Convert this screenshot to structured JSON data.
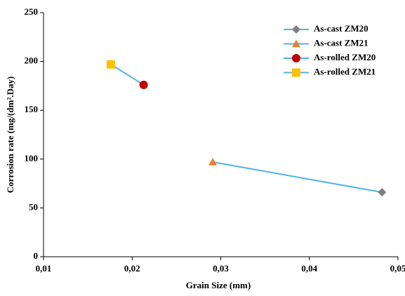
{
  "chart_data": {
    "type": "scatter",
    "xlabel": "Grain Size (mm)",
    "ylabel": "Corrosion rate (mg/(dm².Day)",
    "xlim": [
      0.01,
      0.05
    ],
    "xticks": [
      {
        "value": 0.01,
        "label": "0,01"
      },
      {
        "value": 0.02,
        "label": "0,02"
      },
      {
        "value": 0.03,
        "label": "0,03"
      },
      {
        "value": 0.04,
        "label": "0,04"
      },
      {
        "value": 0.05,
        "label": "0,05"
      }
    ],
    "ylim": [
      0,
      250
    ],
    "yticks": [
      0,
      50,
      100,
      150,
      200,
      250
    ],
    "grid": false,
    "legend": "top-right",
    "line_color": "#4fb3e8",
    "series": [
      {
        "name": "As-cast ZM20",
        "color": "#7f7f7f",
        "marker": "diamond",
        "x": [
          0.0482
        ],
        "values": [
          66
        ]
      },
      {
        "name": "As-cast ZM21",
        "color": "#ed7d31",
        "marker": "triangle",
        "x": [
          0.0291
        ],
        "values": [
          97
        ]
      },
      {
        "name": "As-rolled ZM20",
        "color": "#c00000",
        "marker": "circle",
        "x": [
          0.0213
        ],
        "values": [
          176
        ]
      },
      {
        "name": "As-rolled ZM21",
        "color": "#ffc000",
        "marker": "square",
        "x": [
          0.0176
        ],
        "values": [
          197
        ]
      }
    ]
  }
}
